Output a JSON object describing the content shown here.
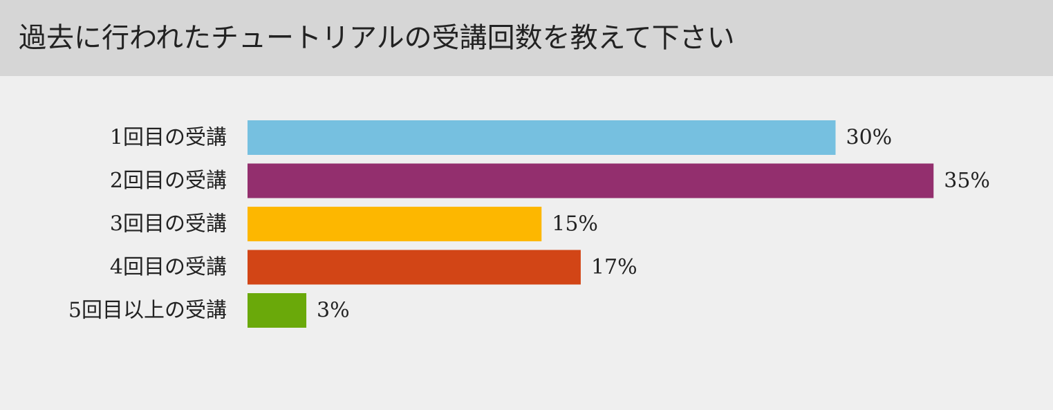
{
  "title": "過去に行われたチュートリアルの受講回数を教えて下さい",
  "chart_data": {
    "type": "bar",
    "orientation": "horizontal",
    "title": "過去に行われたチュートリアルの受講回数を教えて下さい",
    "categories": [
      "1回目の受講",
      "2回目の受講",
      "3回目の受講",
      "4回目の受講",
      "5回目以上の受講"
    ],
    "values": [
      30,
      35,
      15,
      17,
      3
    ],
    "value_labels": [
      "30%",
      "35%",
      "15%",
      "17%",
      "3%"
    ],
    "unit": "%",
    "colors": [
      "#76c0e0",
      "#932f6e",
      "#fdb700",
      "#d24516",
      "#6aa90a"
    ],
    "grid": false,
    "legend": "none"
  }
}
